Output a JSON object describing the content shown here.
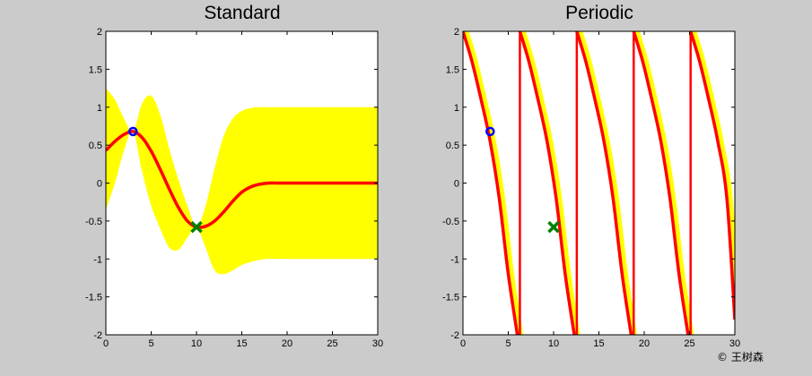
{
  "chart_data": [
    {
      "type": "line",
      "title": "Standard",
      "xlim": [
        0,
        30
      ],
      "ylim": [
        -2,
        2
      ],
      "xticks": [
        "0",
        "5",
        "10",
        "15",
        "20",
        "25",
        "30"
      ],
      "yticks": [
        "2",
        "1.5",
        "1",
        "0.5",
        "0",
        "-0.5",
        "-1",
        "-1.5",
        "-2"
      ],
      "grid": false,
      "legend": "none",
      "colors": {
        "mean": "#ff0000",
        "band": "#ffff00",
        "obs1": "#0000ff",
        "obs2": "#008000",
        "background": "#ffffff"
      },
      "mean": [
        [
          0,
          0.43
        ],
        [
          1,
          0.55
        ],
        [
          2,
          0.64
        ],
        [
          3,
          0.68
        ],
        [
          4,
          0.6
        ],
        [
          5,
          0.42
        ],
        [
          6,
          0.18
        ],
        [
          7,
          -0.08
        ],
        [
          8,
          -0.32
        ],
        [
          9,
          -0.5
        ],
        [
          10,
          -0.58
        ],
        [
          11,
          -0.57
        ],
        [
          12,
          -0.5
        ],
        [
          13,
          -0.38
        ],
        [
          14,
          -0.24
        ],
        [
          15,
          -0.12
        ],
        [
          16,
          -0.05
        ],
        [
          17,
          -0.015
        ],
        [
          18,
          0
        ],
        [
          19,
          0
        ],
        [
          20,
          0
        ],
        [
          21,
          0
        ],
        [
          22,
          0
        ],
        [
          23,
          0
        ],
        [
          24,
          0
        ],
        [
          25,
          0
        ],
        [
          26,
          0
        ],
        [
          27,
          0
        ],
        [
          28,
          0
        ],
        [
          29,
          0
        ],
        [
          30,
          0
        ]
      ],
      "band_upper": [
        [
          0,
          1.25
        ],
        [
          1,
          1.1
        ],
        [
          2,
          0.85
        ],
        [
          3,
          0.68
        ],
        [
          4,
          1.05
        ],
        [
          5,
          1.15
        ],
        [
          6,
          0.9
        ],
        [
          7,
          0.45
        ],
        [
          8,
          0.05
        ],
        [
          9,
          -0.3
        ],
        [
          10,
          -0.58
        ],
        [
          11,
          -0.3
        ],
        [
          12,
          0.2
        ],
        [
          13,
          0.62
        ],
        [
          14,
          0.85
        ],
        [
          15,
          0.95
        ],
        [
          16,
          0.99
        ],
        [
          17,
          1
        ],
        [
          18,
          1
        ],
        [
          20,
          1
        ],
        [
          22,
          1
        ],
        [
          24,
          1
        ],
        [
          26,
          1
        ],
        [
          28,
          1
        ],
        [
          30,
          1
        ]
      ],
      "band_lower": [
        [
          0,
          -0.35
        ],
        [
          1,
          0.0
        ],
        [
          2,
          0.43
        ],
        [
          3,
          0.68
        ],
        [
          4,
          0.15
        ],
        [
          5,
          -0.3
        ],
        [
          6,
          -0.6
        ],
        [
          7,
          -0.85
        ],
        [
          8,
          -0.88
        ],
        [
          9,
          -0.72
        ],
        [
          10,
          -0.58
        ],
        [
          11,
          -0.85
        ],
        [
          12,
          -1.15
        ],
        [
          13,
          -1.2
        ],
        [
          14,
          -1.15
        ],
        [
          15,
          -1.08
        ],
        [
          16,
          -1.04
        ],
        [
          17,
          -1.01
        ],
        [
          18,
          -1
        ],
        [
          20,
          -1
        ],
        [
          22,
          -1
        ],
        [
          24,
          -1
        ],
        [
          26,
          -1
        ],
        [
          28,
          -1
        ],
        [
          30,
          -1
        ]
      ],
      "observations": [
        {
          "x": 3,
          "y": 0.68,
          "marker": "circle",
          "color": "#0000ff"
        },
        {
          "x": 10,
          "y": -0.58,
          "marker": "x",
          "color": "#008000"
        }
      ]
    },
    {
      "type": "line",
      "title": "Periodic",
      "xlim": [
        0,
        30
      ],
      "ylim": [
        -2,
        2
      ],
      "xticks": [
        "0",
        "5",
        "10",
        "15",
        "20",
        "25",
        "30"
      ],
      "yticks": [
        "2",
        "1.5",
        "1",
        "0.5",
        "0",
        "-0.5",
        "-1",
        "-1.5",
        "-2"
      ],
      "grid": false,
      "legend": "none",
      "colors": {
        "mean": "#ff0000",
        "band": "#ffff00",
        "obs1": "#0000ff",
        "obs2": "#008000",
        "background": "#ffffff"
      },
      "period": 6.28,
      "mean_segments": [
        [
          [
            0,
            2.0
          ],
          [
            1,
            1.6
          ],
          [
            2,
            1.1
          ],
          [
            3,
            0.55
          ],
          [
            4,
            -0.2
          ],
          [
            5,
            -1.2
          ],
          [
            6,
            -2.0
          ]
        ],
        [
          [
            6.28,
            -2.0
          ],
          [
            6.28,
            2.0
          ]
        ],
        [
          [
            6.28,
            2.0
          ],
          [
            7.28,
            1.6
          ],
          [
            8.28,
            1.1
          ],
          [
            9.28,
            0.55
          ],
          [
            10.28,
            -0.2
          ],
          [
            11.28,
            -1.2
          ],
          [
            12.28,
            -2.0
          ]
        ],
        [
          [
            12.56,
            -2.0
          ],
          [
            12.56,
            2.0
          ]
        ],
        [
          [
            12.56,
            2.0
          ],
          [
            13.56,
            1.6
          ],
          [
            14.56,
            1.1
          ],
          [
            15.56,
            0.55
          ],
          [
            16.56,
            -0.2
          ],
          [
            17.56,
            -1.2
          ],
          [
            18.56,
            -2.0
          ]
        ],
        [
          [
            18.84,
            -2.0
          ],
          [
            18.84,
            2.0
          ]
        ],
        [
          [
            18.84,
            2.0
          ],
          [
            19.84,
            1.6
          ],
          [
            20.84,
            1.1
          ],
          [
            21.84,
            0.55
          ],
          [
            22.84,
            -0.2
          ],
          [
            23.84,
            -1.2
          ],
          [
            24.84,
            -2.0
          ]
        ],
        [
          [
            25.12,
            -2.0
          ],
          [
            25.12,
            2.0
          ]
        ],
        [
          [
            25.12,
            2.0
          ],
          [
            26.12,
            1.6
          ],
          [
            27.12,
            1.1
          ],
          [
            28.12,
            0.55
          ],
          [
            29.12,
            -0.2
          ],
          [
            30,
            -1.8
          ]
        ]
      ],
      "observations": [
        {
          "x": 3,
          "y": 0.68,
          "marker": "circle",
          "color": "#0000ff"
        },
        {
          "x": 10,
          "y": -0.58,
          "marker": "x",
          "color": "#008000"
        }
      ]
    }
  ],
  "watermark": "© 王树森"
}
